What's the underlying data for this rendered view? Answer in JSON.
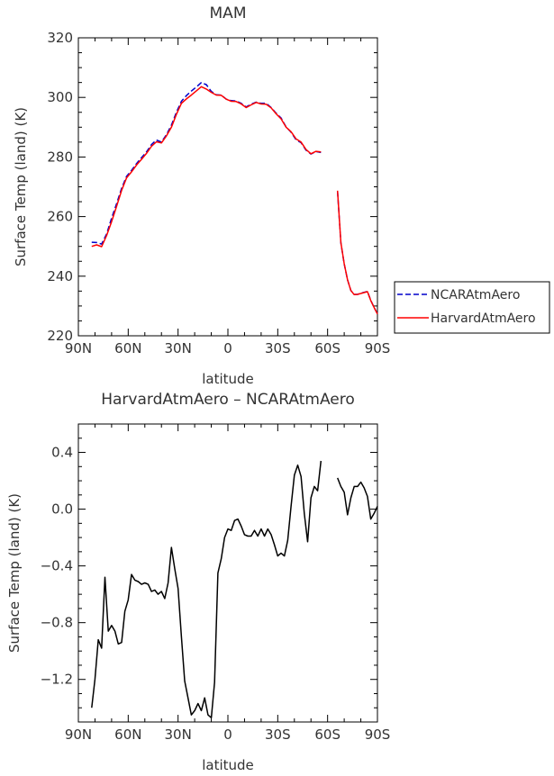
{
  "chart_data": [
    {
      "type": "line",
      "title": "MAM",
      "xlabel": "latitude",
      "ylabel": "Surface Temp (land) (K)",
      "xlim": [
        90,
        -90
      ],
      "ylim": [
        220,
        320
      ],
      "x_tick_values": [
        90,
        60,
        30,
        0,
        -30,
        -60,
        -90
      ],
      "x_tick_labels": [
        "90N",
        "60N",
        "30N",
        "0",
        "30S",
        "60S",
        "90S"
      ],
      "y_tick_values": [
        220,
        240,
        260,
        280,
        300,
        320
      ],
      "y_tick_labels": [
        "220",
        "240",
        "260",
        "280",
        "300",
        "320"
      ],
      "legend_position": "right",
      "series": [
        {
          "name": "NCARAtmAero",
          "color": "#0000cc",
          "dash": true,
          "segments": [
            {
              "x": [
                82,
                79,
                76,
                73,
                70,
                67,
                64,
                61,
                58,
                55,
                52,
                49,
                46,
                43,
                40,
                37,
                34,
                31,
                28,
                25,
                22,
                19,
                16,
                13,
                10,
                7,
                4,
                1,
                -2,
                -5,
                -8,
                -11,
                -14,
                -17,
                -20,
                -23,
                -26,
                -29,
                -32,
                -35,
                -38,
                -41,
                -44,
                -47,
                -50,
                -53,
                -56
              ],
              "y": [
                251.4,
                251.3,
                250.8,
                254.2,
                259.5,
                264.3,
                269.5,
                273.5,
                275.5,
                277.8,
                279.8,
                281.7,
                284.2,
                285.7,
                285.0,
                287.5,
                290.7,
                295.0,
                298.7,
                300.6,
                302.1,
                303.5,
                305.0,
                304.3,
                302.0,
                300.9,
                300.8,
                299.4,
                298.9,
                298.8,
                298.0,
                296.8,
                297.7,
                298.4,
                298.0,
                298.0,
                296.6,
                294.7,
                293.1,
                290.1,
                288.3,
                285.8,
                284.8,
                282.3,
                281.0,
                281.8,
                281.5
              ]
            },
            {
              "x": [
                -66,
                -68,
                -70,
                -72,
                -74,
                -76,
                -78,
                -80,
                -82,
                -84,
                -86,
                -88,
                -90
              ],
              "y": [
                268.5,
                251.2,
                244.1,
                238.8,
                235.2,
                233.9,
                233.9,
                234.3,
                234.6,
                234.9,
                231.9,
                229.5,
                227.4
              ]
            }
          ]
        },
        {
          "name": "HarvardAtmAero",
          "color": "#ff0000",
          "dash": false,
          "segments": [
            {
              "x": [
                82,
                79,
                76,
                73,
                70,
                67,
                64,
                61,
                58,
                55,
                52,
                49,
                46,
                43,
                40,
                37,
                34,
                31,
                28,
                25,
                22,
                19,
                16,
                13,
                10,
                7,
                4,
                1,
                -2,
                -5,
                -8,
                -11,
                -14,
                -17,
                -20,
                -23,
                -26,
                -29,
                -32,
                -35,
                -38,
                -41,
                -44,
                -47,
                -50,
                -53,
                -56
              ],
              "y": [
                250.0,
                250.5,
                249.9,
                253.7,
                258.3,
                263.4,
                268.8,
                273.0,
                275.0,
                277.3,
                279.2,
                281.2,
                283.6,
                285.1,
                284.7,
                287.1,
                290.0,
                294.3,
                298.0,
                299.5,
                300.8,
                302.2,
                303.6,
                302.8,
                301.7,
                300.8,
                300.7,
                299.4,
                298.7,
                298.6,
                297.8,
                296.6,
                297.5,
                298.3,
                297.8,
                297.7,
                296.5,
                294.5,
                292.8,
                290.0,
                288.5,
                286.1,
                285.0,
                282.5,
                281.1,
                281.9,
                281.7
              ]
            },
            {
              "x": [
                -66,
                -68,
                -70,
                -72,
                -74,
                -76,
                -78,
                -80,
                -82,
                -84,
                -86,
                -88,
                -90
              ],
              "y": [
                268.7,
                251.3,
                244.2,
                238.8,
                235.2,
                233.8,
                233.9,
                234.2,
                234.5,
                234.8,
                231.8,
                229.5,
                227.3
              ]
            }
          ]
        }
      ]
    },
    {
      "type": "line",
      "title": "HarvardAtmAero – NCARAtmAero",
      "xlabel": "latitude",
      "ylabel": "Surface Temp (land) (K)",
      "xlim": [
        90,
        -90
      ],
      "ylim": [
        -1.5,
        0.6
      ],
      "x_tick_values": [
        90,
        60,
        30,
        0,
        -30,
        -60,
        -90
      ],
      "x_tick_labels": [
        "90N",
        "60N",
        "30N",
        "0",
        "30S",
        "60S",
        "90S"
      ],
      "y_tick_values": [
        -1.2,
        -0.8,
        -0.4,
        0.0,
        0.4
      ],
      "y_tick_labels": [
        "−1.2",
        "−0.8",
        "−0.4",
        "0.0",
        "0.4"
      ],
      "series": [
        {
          "color": "#000000",
          "dash": false,
          "segments": [
            {
              "x": [
                82,
                80,
                78,
                76,
                74,
                72,
                70,
                68,
                66,
                64,
                62,
                60,
                58,
                56,
                54,
                52,
                50,
                48,
                46,
                44,
                42,
                40,
                38,
                36,
                34,
                32,
                30,
                28,
                26,
                24,
                22,
                20,
                18,
                16,
                14,
                12,
                10,
                8,
                6,
                4,
                2,
                0,
                -2,
                -4,
                -6,
                -8,
                -10,
                -12,
                -14,
                -16,
                -18,
                -20,
                -22,
                -24,
                -26,
                -28,
                -30,
                -32,
                -34,
                -36,
                -38,
                -40,
                -42,
                -44,
                -46,
                -48,
                -50,
                -52,
                -54,
                -56
              ],
              "y": [
                -1.4,
                -1.2,
                -0.92,
                -0.98,
                -0.48,
                -0.86,
                -0.82,
                -0.86,
                -0.95,
                -0.94,
                -0.72,
                -0.64,
                -0.46,
                -0.5,
                -0.51,
                -0.53,
                -0.52,
                -0.53,
                -0.58,
                -0.57,
                -0.6,
                -0.58,
                -0.63,
                -0.52,
                -0.27,
                -0.42,
                -0.56,
                -0.9,
                -1.21,
                -1.33,
                -1.45,
                -1.42,
                -1.37,
                -1.42,
                -1.33,
                -1.45,
                -1.47,
                -1.22,
                -0.45,
                -0.35,
                -0.2,
                -0.14,
                -0.15,
                -0.08,
                -0.07,
                -0.12,
                -0.18,
                -0.19,
                -0.19,
                -0.15,
                -0.19,
                -0.14,
                -0.19,
                -0.14,
                -0.18,
                -0.25,
                -0.33,
                -0.31,
                -0.33,
                -0.22,
                0.02,
                0.24,
                0.31,
                0.23,
                -0.03,
                -0.23,
                0.08,
                0.16,
                0.13,
                0.34
              ]
            },
            {
              "x": [
                -66,
                -68,
                -70,
                -72,
                -74,
                -76,
                -78,
                -80,
                -82,
                -84,
                -86,
                -88,
                -90
              ],
              "y": [
                0.22,
                0.16,
                0.12,
                -0.04,
                0.08,
                0.16,
                0.16,
                0.19,
                0.15,
                0.09,
                -0.07,
                -0.03,
                0.02
              ]
            }
          ]
        }
      ]
    }
  ]
}
